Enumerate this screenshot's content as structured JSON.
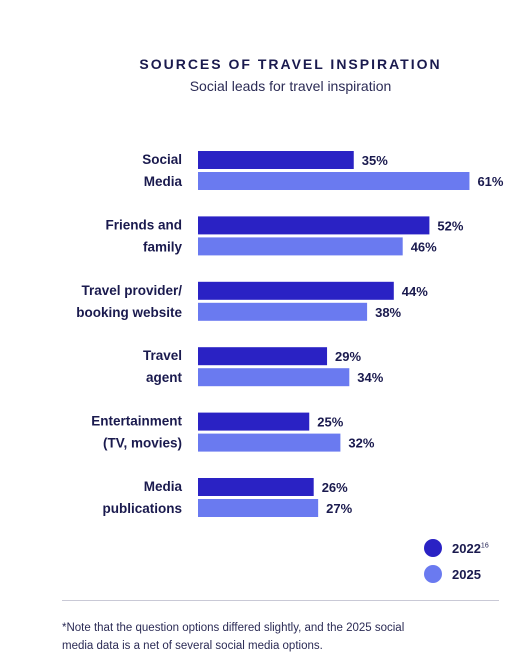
{
  "header": {
    "title": "SOURCES OF TRAVEL INSPIRATION",
    "subtitle": "Social leads for travel inspiration"
  },
  "chart_data": {
    "type": "bar",
    "orientation": "horizontal",
    "categories": [
      [
        "Social",
        "Media"
      ],
      [
        "Friends and",
        "family"
      ],
      [
        "Travel provider/",
        "booking website"
      ],
      [
        "Travel",
        "agent"
      ],
      [
        "Entertainment",
        "(TV, movies)"
      ],
      [
        "Media",
        "publications"
      ]
    ],
    "series": [
      {
        "name": "2022",
        "values": [
          35,
          52,
          44,
          29,
          25,
          26
        ],
        "color": "#2a22c4"
      },
      {
        "name": "2025",
        "values": [
          61,
          46,
          38,
          34,
          32,
          27
        ],
        "color": "#6a7af0"
      }
    ],
    "value_suffix": "%",
    "grid": false,
    "legend_position": "bottom-right"
  },
  "legend": {
    "items": [
      {
        "label": "2022",
        "sup": "16",
        "color": "#2a22c4"
      },
      {
        "label": "2025",
        "sup": "",
        "color": "#6a7af0"
      }
    ]
  },
  "footnote": {
    "line1": "*Note that the question options differed slightly, and the 2025 social",
    "line2": "media data is a net of several social media options."
  }
}
